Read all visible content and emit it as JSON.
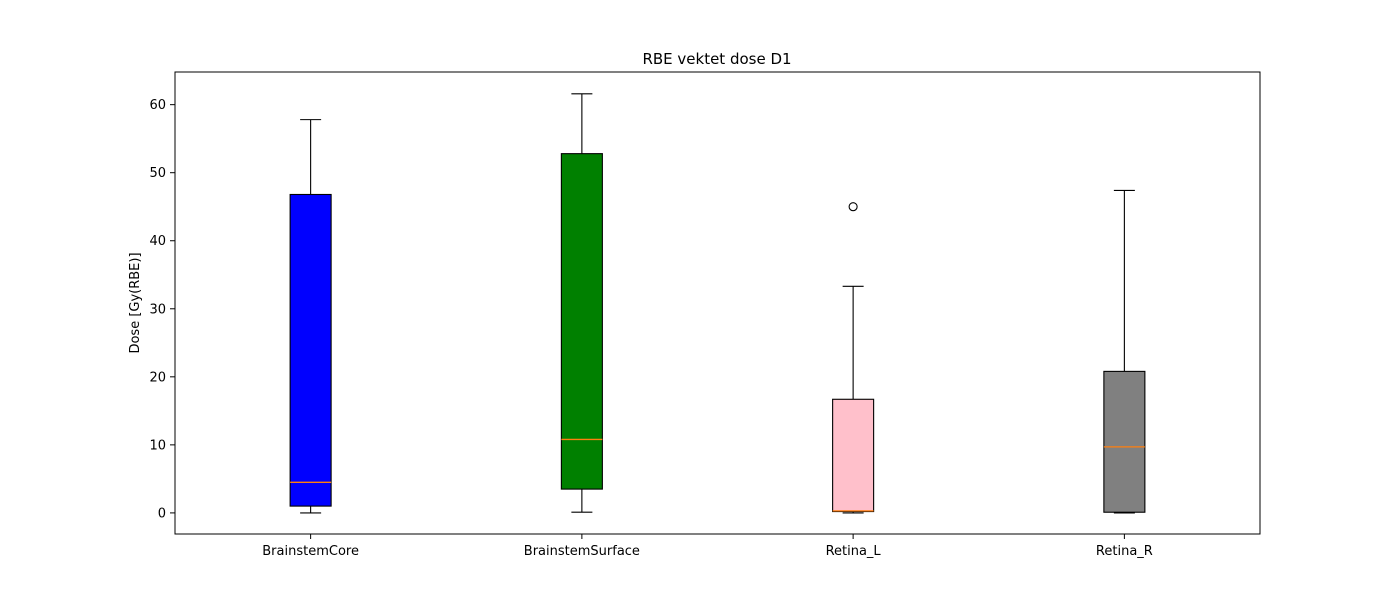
{
  "chart_data": {
    "type": "box",
    "title": "RBE vektet dose D1",
    "xlabel": "",
    "ylabel": "Dose [Gy(RBE)]",
    "ylim": [
      -3.1,
      64.8
    ],
    "yticks": [
      0,
      10,
      20,
      30,
      40,
      50,
      60
    ],
    "grid": false,
    "median_color": "#ff7f0e",
    "boxes": [
      {
        "category": "BrainstemCore",
        "whisker_low": 0.0,
        "q1": 1.0,
        "median": 4.5,
        "q3": 46.8,
        "whisker_high": 57.8,
        "outliers": [],
        "color": "#0000ff"
      },
      {
        "category": "BrainstemSurface",
        "whisker_low": 0.1,
        "q1": 3.5,
        "median": 10.8,
        "q3": 52.8,
        "whisker_high": 61.6,
        "outliers": [],
        "color": "#008000"
      },
      {
        "category": "Retina_L",
        "whisker_low": 0.0,
        "q1": 0.2,
        "median": 0.3,
        "q3": 16.7,
        "whisker_high": 33.3,
        "outliers": [
          45.0
        ],
        "color": "#ffc0cb"
      },
      {
        "category": "Retina_R",
        "whisker_low": 0.0,
        "q1": 0.1,
        "median": 9.7,
        "q3": 20.8,
        "whisker_high": 47.4,
        "outliers": [],
        "color": "#808080"
      }
    ]
  }
}
